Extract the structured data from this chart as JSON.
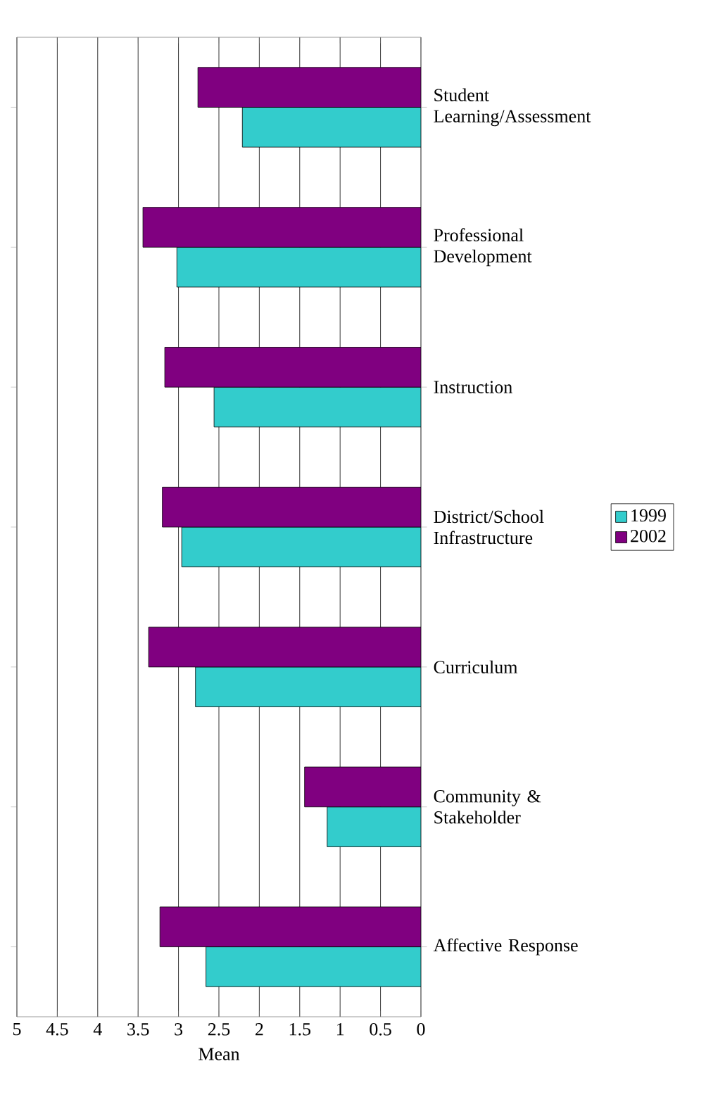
{
  "chart_data": {
    "type": "bar",
    "orientation": "horizontal",
    "xlabel": "Mean",
    "categories": [
      "Student Learning/Assessment",
      "Professional Development",
      "Instruction",
      "District/School Infrastructure",
      "Curriculum",
      "Community & Stakeholder",
      "Affective Response"
    ],
    "series": [
      {
        "name": "1999",
        "color": "#33cccc",
        "values": [
          2.21,
          3.02,
          2.56,
          2.96,
          2.79,
          1.16,
          2.66
        ]
      },
      {
        "name": "2002",
        "color": "#800080",
        "values": [
          2.76,
          3.44,
          3.17,
          3.2,
          3.37,
          1.44,
          3.23
        ]
      }
    ],
    "xlim": [
      5,
      0
    ],
    "xticks": [
      0,
      0.5,
      1,
      1.5,
      2,
      2.5,
      3,
      3.5,
      4,
      4.5,
      5
    ],
    "grid": "x",
    "legend": "right"
  }
}
